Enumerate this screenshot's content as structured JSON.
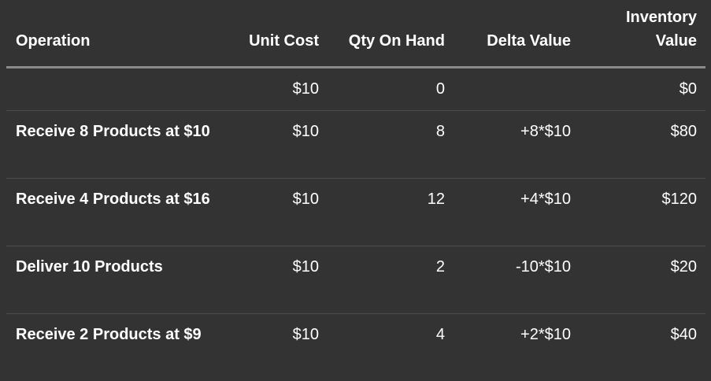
{
  "table": {
    "headers": {
      "operation": "Operation",
      "unit_cost": "Unit Cost",
      "qty_on_hand": "Qty On Hand",
      "delta_value": "Delta Value",
      "inventory_value": "Inventory Value"
    },
    "rows": [
      {
        "operation": "",
        "unit_cost": "$10",
        "qty_on_hand": "0",
        "delta_value": "",
        "inventory_value": "$0"
      },
      {
        "operation": "Receive 8 Products at $10",
        "unit_cost": "$10",
        "qty_on_hand": "8",
        "delta_value": "+8*$10",
        "inventory_value": "$80"
      },
      {
        "operation": "Receive 4 Products at $16",
        "unit_cost": "$10",
        "qty_on_hand": "12",
        "delta_value": "+4*$10",
        "inventory_value": "$120"
      },
      {
        "operation": "Deliver 10 Products",
        "unit_cost": "$10",
        "qty_on_hand": "2",
        "delta_value": "-10*$10",
        "inventory_value": "$20"
      },
      {
        "operation": "Receive 2 Products at $9",
        "unit_cost": "$10",
        "qty_on_hand": "4",
        "delta_value": "+2*$10",
        "inventory_value": "$40"
      }
    ]
  }
}
